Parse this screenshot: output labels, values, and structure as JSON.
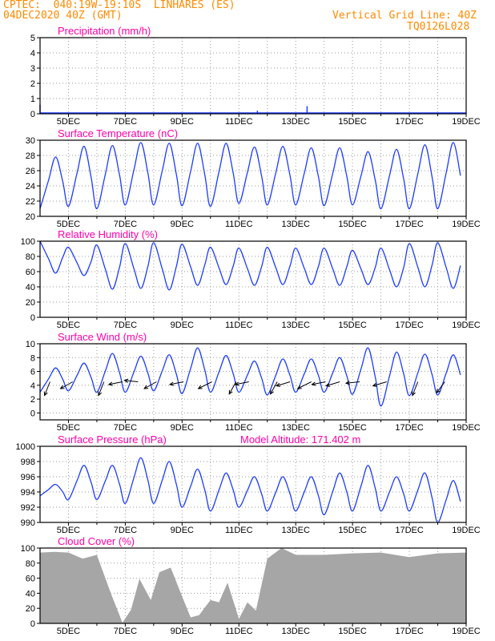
{
  "header": {
    "line1": "CPTEC:  040:19W-19:10S  LINHARES (ES)",
    "line2": "04DEC2020 40Z (GMT)",
    "right1": "Vertical Grid Line: 40Z",
    "right2": "TQ0126L028"
  },
  "colors": {
    "header": "#ff8a00",
    "title": "#ff00aa",
    "line": "#1e3cff",
    "cloud": "#a6a6a6",
    "grid": "#9a9a9a",
    "wind_arrow": "#000000"
  },
  "chart_data": [
    {
      "type": "bar",
      "title": "Precipitation (mm/h)",
      "ylim": [
        0,
        5
      ],
      "yticks": [
        0,
        1,
        2,
        3,
        4,
        5
      ],
      "xlabels": [
        "5DEC",
        "7DEC",
        "9DEC",
        "11DEC",
        "13DEC",
        "15DEC",
        "17DEC",
        "19DEC"
      ],
      "series": [
        {
          "x_days": [
            4.0,
            11.65,
            13.4
          ],
          "values": [
            0.6,
            0.2,
            0.5
          ]
        }
      ]
    },
    {
      "type": "line",
      "title": "Surface Temperature (nC)",
      "ylim": [
        20,
        30
      ],
      "yticks": [
        20,
        22,
        24,
        26,
        28,
        30
      ],
      "xlabels": [
        "5DEC",
        "7DEC",
        "9DEC",
        "11DEC",
        "13DEC",
        "15DEC",
        "17DEC",
        "19DEC"
      ],
      "series": [
        {
          "min": [
            21.0,
            21.3,
            21.0,
            21.5,
            21.5,
            21.4,
            21.3,
            21.7,
            21.5,
            21.5,
            21.4,
            21.5,
            21.0,
            21.0,
            21.0
          ],
          "max": [
            27.8,
            29.2,
            29.3,
            29.7,
            29.6,
            29.6,
            29.6,
            29.1,
            29.2,
            29.0,
            29.0,
            28.5,
            28.8,
            29.4,
            29.7
          ]
        }
      ]
    },
    {
      "type": "line",
      "title": "Relative Humidity (%)",
      "ylim": [
        0,
        100
      ],
      "yticks": [
        0,
        20,
        40,
        60,
        80,
        100
      ],
      "xlabels": [
        "5DEC",
        "7DEC",
        "9DEC",
        "11DEC",
        "13DEC",
        "15DEC",
        "17DEC",
        "19DEC"
      ],
      "series": [
        {
          "min": [
            58,
            55,
            37,
            38,
            36,
            42,
            43,
            42,
            43,
            43,
            42,
            43,
            40,
            40,
            38
          ],
          "max": [
            100,
            92,
            95,
            97,
            98,
            96,
            92,
            91,
            92,
            91,
            91,
            88,
            91,
            97,
            98
          ]
        }
      ]
    },
    {
      "type": "line",
      "title": "Surface Wind (m/s)",
      "ylim": [
        -1,
        10
      ],
      "yticks": [
        0,
        2,
        4,
        6,
        8,
        10
      ],
      "xlabels": [
        "5DEC",
        "7DEC",
        "9DEC",
        "11DEC",
        "13DEC",
        "15DEC",
        "17DEC",
        "19DEC"
      ],
      "series": [
        {
          "min": [
            3.0,
            3.2,
            3.0,
            3.0,
            3.2,
            2.8,
            3.0,
            3.0,
            2.6,
            3.0,
            3.0,
            2.7,
            1.0,
            2.5,
            2.6
          ],
          "max": [
            6.5,
            7.2,
            8.6,
            8.2,
            8.4,
            9.4,
            8.3,
            7.5,
            7.8,
            7.8,
            8.0,
            9.4,
            8.8,
            8.5,
            8.4
          ]
        }
      ],
      "arrows": [
        {
          "day": 4.35,
          "dx": -0.4,
          "dy": 1.0
        },
        {
          "day": 5.15,
          "dx": -0.9,
          "dy": 0.5
        },
        {
          "day": 6.25,
          "dx": -0.4,
          "dy": 1.0
        },
        {
          "day": 6.9,
          "dx": -1.0,
          "dy": 0.2
        },
        {
          "day": 7.45,
          "dx": -1.0,
          "dy": -0.1
        },
        {
          "day": 8.1,
          "dx": -0.9,
          "dy": 0.5
        },
        {
          "day": 9.05,
          "dx": -1.0,
          "dy": 0.2
        },
        {
          "day": 10.05,
          "dx": -1.0,
          "dy": 0.5
        },
        {
          "day": 10.9,
          "dx": -0.5,
          "dy": 0.9
        },
        {
          "day": 11.35,
          "dx": -1.0,
          "dy": 0.2
        },
        {
          "day": 12.35,
          "dx": -0.5,
          "dy": 0.9
        },
        {
          "day": 12.8,
          "dx": -1.0,
          "dy": 0.3
        },
        {
          "day": 13.55,
          "dx": -1.0,
          "dy": 0.5
        },
        {
          "day": 14.05,
          "dx": -1.0,
          "dy": 0.2
        },
        {
          "day": 14.55,
          "dx": -1.0,
          "dy": 0.3
        },
        {
          "day": 15.25,
          "dx": -1.0,
          "dy": 0.1
        },
        {
          "day": 16.2,
          "dx": -1.0,
          "dy": 0.3
        },
        {
          "day": 17.3,
          "dx": -0.4,
          "dy": 1.0
        },
        {
          "day": 18.25,
          "dx": -0.6,
          "dy": 0.8
        }
      ]
    },
    {
      "type": "line",
      "title": "Surface Pressure (hPa)",
      "subtitle": "Model Altitude: 171.402  m",
      "ylim": [
        990,
        1000
      ],
      "yticks": [
        990,
        992,
        994,
        996,
        998,
        1000
      ],
      "xlabels": [
        "5DEC",
        "7DEC",
        "9DEC",
        "11DEC",
        "13DEC",
        "15DEC",
        "17DEC",
        "19DEC"
      ],
      "series": [
        {
          "min": [
            993.5,
            993.0,
            993.0,
            992.5,
            992.5,
            992.0,
            991.5,
            992.0,
            991.5,
            991.5,
            991.0,
            991.5,
            991.5,
            991.5,
            990.0
          ],
          "max": [
            995.0,
            997.5,
            997.5,
            998.5,
            998.0,
            997.0,
            996.5,
            996.0,
            996.0,
            996.0,
            996.5,
            997.5,
            996.0,
            996.5,
            995.5
          ]
        }
      ]
    },
    {
      "type": "area",
      "title": "Cloud Cover (%)",
      "ylim": [
        0,
        100
      ],
      "yticks": [
        0,
        20,
        40,
        60,
        80,
        100
      ],
      "xlabels": [
        "5DEC",
        "7DEC",
        "9DEC",
        "11DEC",
        "13DEC",
        "15DEC",
        "17DEC",
        "19DEC"
      ],
      "series": [
        {
          "days": [
            4.0,
            4.5,
            5.0,
            5.5,
            6.0,
            6.5,
            6.9,
            7.2,
            7.5,
            7.9,
            8.2,
            8.6,
            9.0,
            9.3,
            9.6,
            10.0,
            10.3,
            10.6,
            11.0,
            11.3,
            11.6,
            12.0,
            12.5,
            13.0,
            14.0,
            15.0,
            16.0,
            17.0,
            18.0,
            19.0
          ],
          "values": [
            98,
            92,
            95,
            90,
            88,
            40,
            5,
            15,
            60,
            35,
            65,
            75,
            40,
            5,
            12,
            35,
            25,
            55,
            10,
            25,
            18,
            90,
            98,
            92,
            95,
            90,
            95,
            92,
            90,
            95
          ]
        }
      ]
    }
  ]
}
